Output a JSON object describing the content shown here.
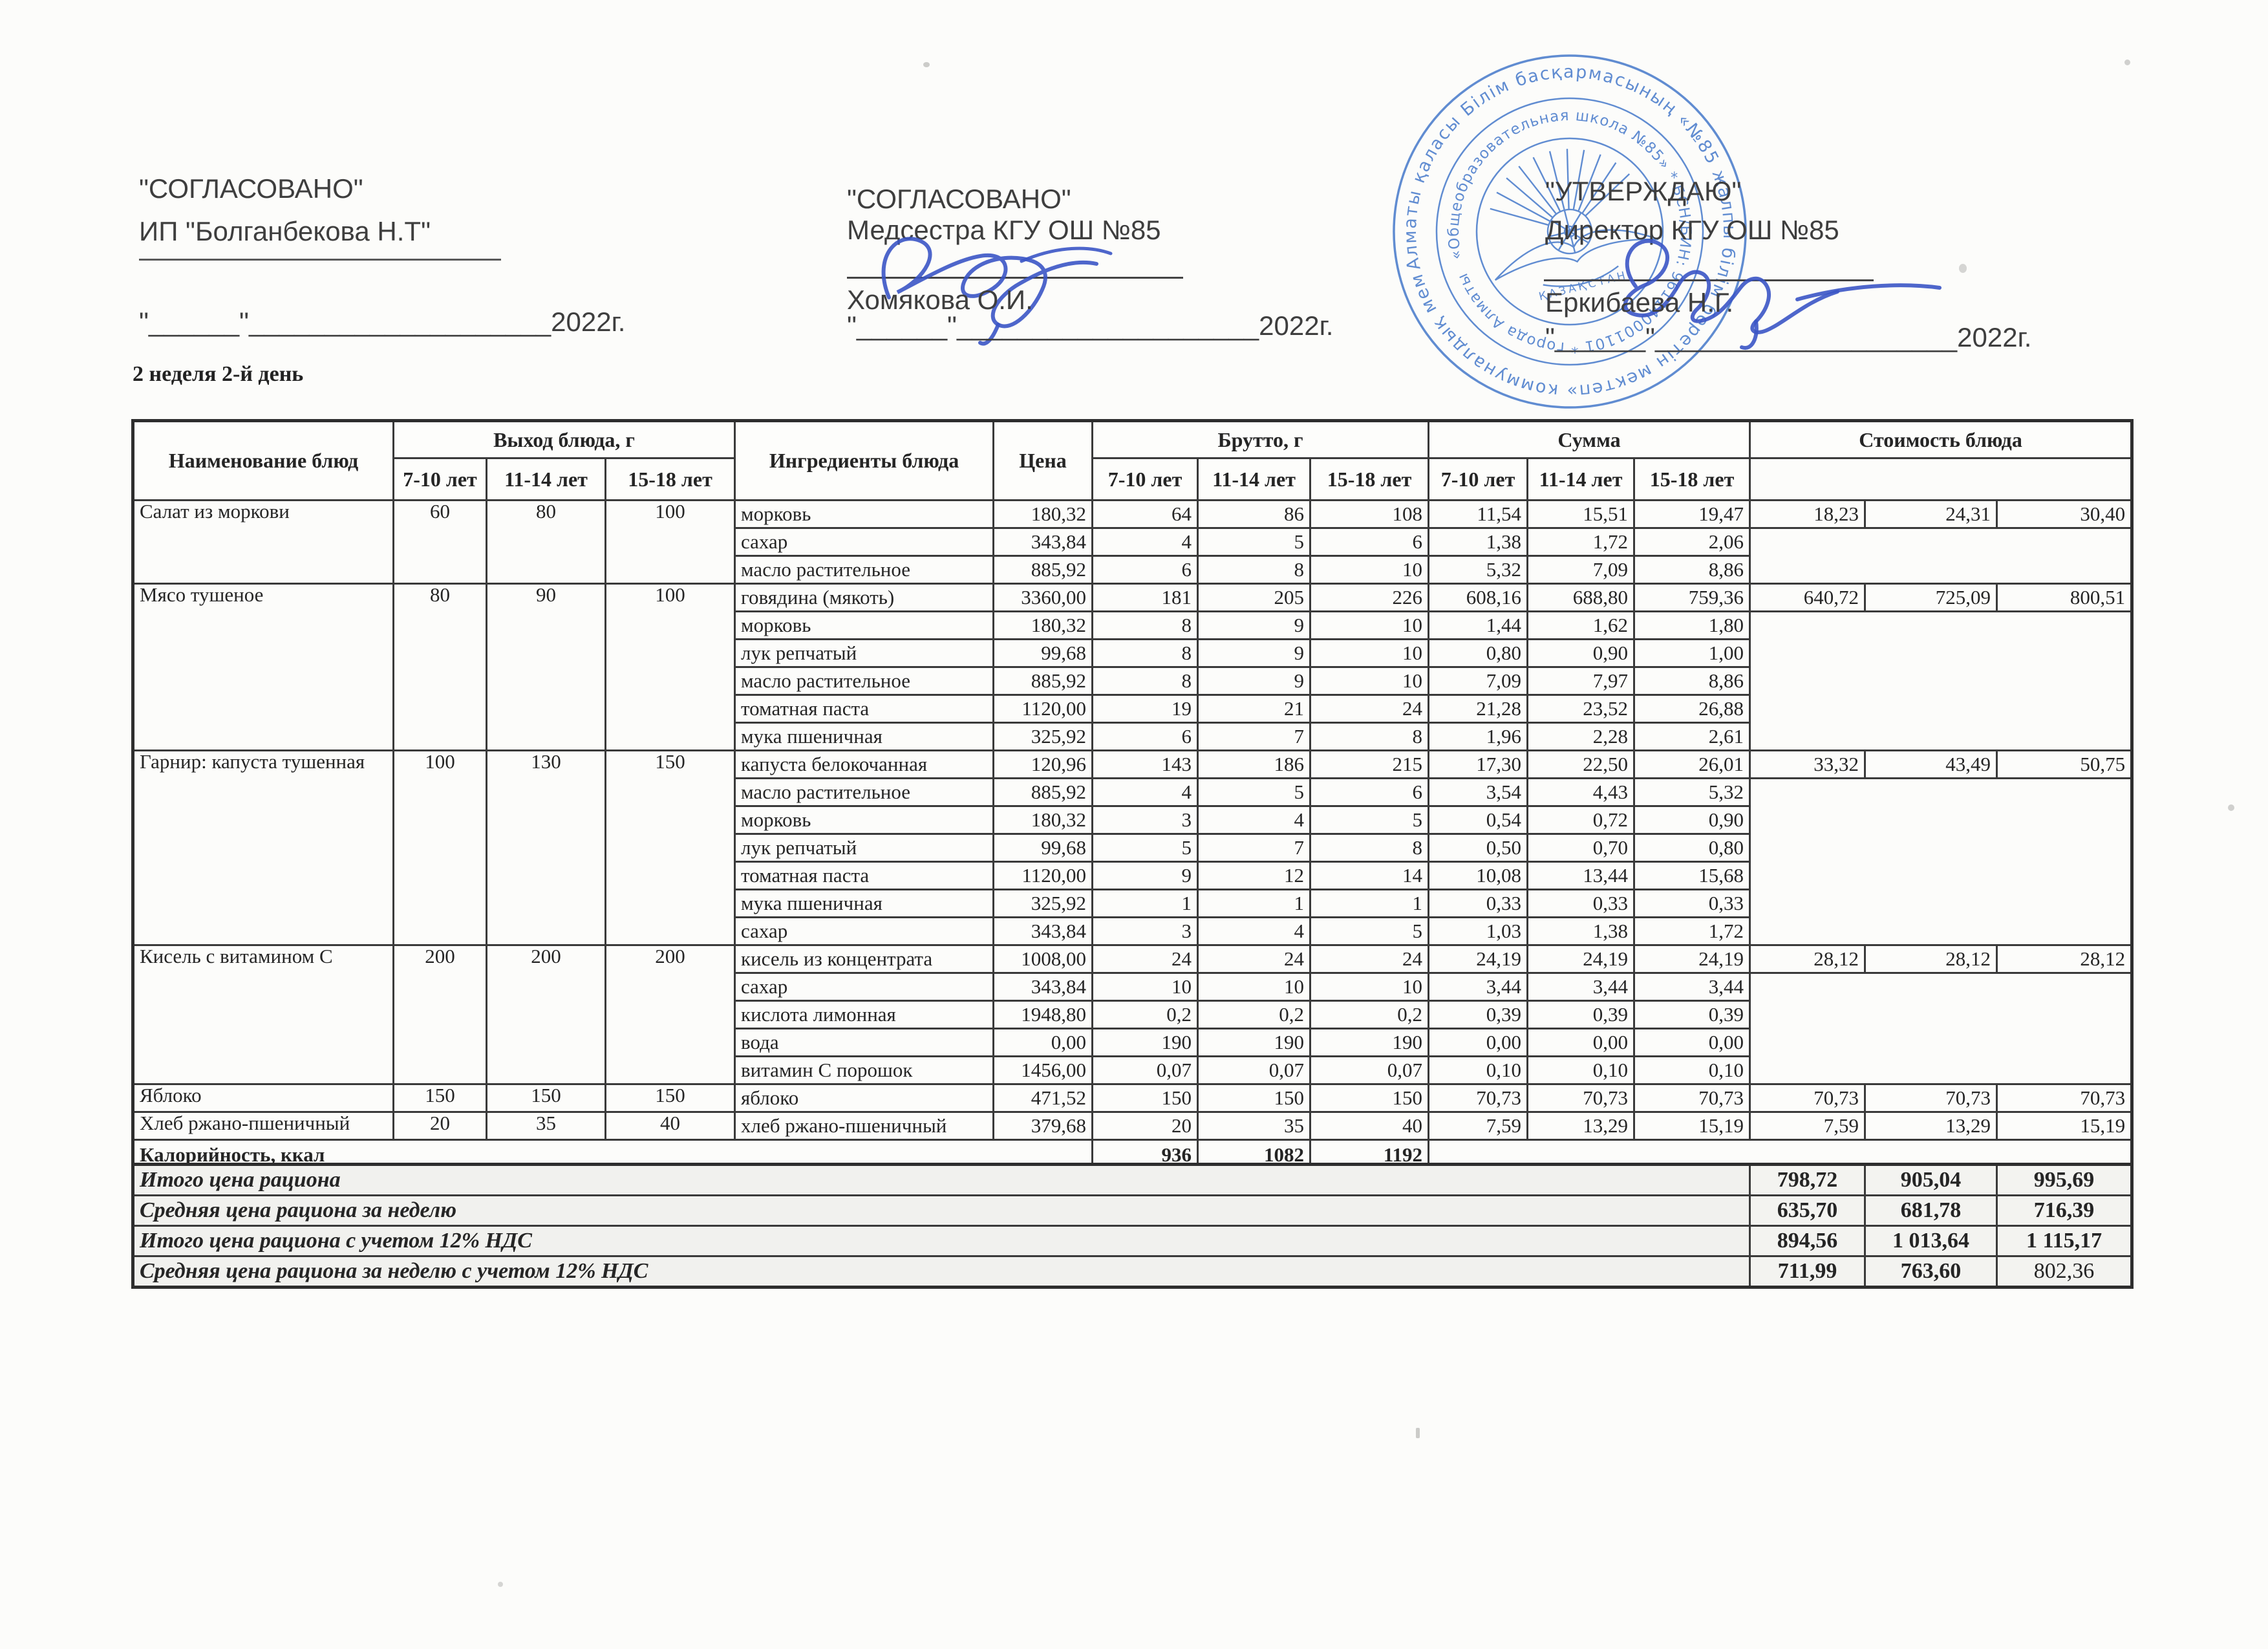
{
  "approvals": [
    {
      "title": "\"СОГЛАСОВАНО\"",
      "subtitle": "ИП \"Болганбекова Н.Т\"",
      "signer": "",
      "date_line": "\"______\"____________________2022г."
    },
    {
      "title": "\"СОГЛАСОВАНО\"",
      "subtitle": "Медсестра КГУ ОШ №85",
      "signer": "Хомякова О.И.",
      "date_line": "\"______\"____________________2022г."
    },
    {
      "title": "\"УТВЕРЖДАЮ\"",
      "subtitle": "Директор КГУ ОШ №85",
      "signer": "Еркибаева Н.Г.",
      "date_line": "\"______\"____________________2022г."
    }
  ],
  "week_label": "2 неделя 2-й день",
  "stamp": {
    "ring_outer": "Алматы қаласы Білім басқармасының «№85 жалпы білім беретін мектеп» коммуналдық мемлекеттік мекемесі *",
    "ring_inner": "«Общеобразовательная школа №85»  *  БСН/БИН: 961140001101  *  города Алматы",
    "center_text": "ҚАЗАҚСТАН",
    "color": "#3f74c9"
  },
  "menu_table": {
    "col_headers": {
      "dish": "Наименование блюд",
      "output": "Выход блюда, г",
      "ingredients": "Ингредиенты блюда",
      "price": "Цена",
      "brutto": "Брутто, г",
      "summa": "Сумма",
      "cost": "Стоимость блюда"
    },
    "age_groups": [
      "7-10 лет",
      "11-14 лет",
      "15-18 лет"
    ],
    "dishes": [
      {
        "name": "Салат из моркови",
        "portions": [
          "60",
          "80",
          "100"
        ],
        "cost": [
          "18,23",
          "24,31",
          "30,40"
        ],
        "ingredients": [
          {
            "name": "морковь",
            "price": "180,32",
            "brutto": [
              "64",
              "86",
              "108"
            ],
            "summa": [
              "11,54",
              "15,51",
              "19,47"
            ]
          },
          {
            "name": "сахар",
            "price": "343,84",
            "brutto": [
              "4",
              "5",
              "6"
            ],
            "summa": [
              "1,38",
              "1,72",
              "2,06"
            ]
          },
          {
            "name": "масло растительное",
            "price": "885,92",
            "brutto": [
              "6",
              "8",
              "10"
            ],
            "summa": [
              "5,32",
              "7,09",
              "8,86"
            ]
          }
        ]
      },
      {
        "name": "Мясо тушеное",
        "portions": [
          "80",
          "90",
          "100"
        ],
        "cost": [
          "640,72",
          "725,09",
          "800,51"
        ],
        "ingredients": [
          {
            "name": "говядина (мякоть)",
            "price": "3360,00",
            "brutto": [
              "181",
              "205",
              "226"
            ],
            "summa": [
              "608,16",
              "688,80",
              "759,36"
            ]
          },
          {
            "name": "морковь",
            "price": "180,32",
            "brutto": [
              "8",
              "9",
              "10"
            ],
            "summa": [
              "1,44",
              "1,62",
              "1,80"
            ]
          },
          {
            "name": "лук репчатый",
            "price": "99,68",
            "brutto": [
              "8",
              "9",
              "10"
            ],
            "summa": [
              "0,80",
              "0,90",
              "1,00"
            ]
          },
          {
            "name": "масло растительное",
            "price": "885,92",
            "brutto": [
              "8",
              "9",
              "10"
            ],
            "summa": [
              "7,09",
              "7,97",
              "8,86"
            ]
          },
          {
            "name": "томатная паста",
            "price": "1120,00",
            "brutto": [
              "19",
              "21",
              "24"
            ],
            "summa": [
              "21,28",
              "23,52",
              "26,88"
            ]
          },
          {
            "name": "мука пшеничная",
            "price": "325,92",
            "brutto": [
              "6",
              "7",
              "8"
            ],
            "summa": [
              "1,96",
              "2,28",
              "2,61"
            ]
          }
        ]
      },
      {
        "name": "Гарнир: капуста тушенная",
        "portions": [
          "100",
          "130",
          "150"
        ],
        "cost": [
          "33,32",
          "43,49",
          "50,75"
        ],
        "ingredients": [
          {
            "name": "капуста белокочанная",
            "price": "120,96",
            "brutto": [
              "143",
              "186",
              "215"
            ],
            "summa": [
              "17,30",
              "22,50",
              "26,01"
            ]
          },
          {
            "name": "масло растительное",
            "price": "885,92",
            "brutto": [
              "4",
              "5",
              "6"
            ],
            "summa": [
              "3,54",
              "4,43",
              "5,32"
            ]
          },
          {
            "name": "морковь",
            "price": "180,32",
            "brutto": [
              "3",
              "4",
              "5"
            ],
            "summa": [
              "0,54",
              "0,72",
              "0,90"
            ]
          },
          {
            "name": "лук репчатый",
            "price": "99,68",
            "brutto": [
              "5",
              "7",
              "8"
            ],
            "summa": [
              "0,50",
              "0,70",
              "0,80"
            ]
          },
          {
            "name": "томатная паста",
            "price": "1120,00",
            "brutto": [
              "9",
              "12",
              "14"
            ],
            "summa": [
              "10,08",
              "13,44",
              "15,68"
            ]
          },
          {
            "name": "мука пшеничная",
            "price": "325,92",
            "brutto": [
              "1",
              "1",
              "1"
            ],
            "summa": [
              "0,33",
              "0,33",
              "0,33"
            ]
          },
          {
            "name": "сахар",
            "price": "343,84",
            "brutto": [
              "3",
              "4",
              "5"
            ],
            "summa": [
              "1,03",
              "1,38",
              "1,72"
            ]
          }
        ]
      },
      {
        "name": "Кисель с витамином С",
        "portions": [
          "200",
          "200",
          "200"
        ],
        "cost": [
          "28,12",
          "28,12",
          "28,12"
        ],
        "ingredients": [
          {
            "name": "кисель из концентрата",
            "price": "1008,00",
            "brutto": [
              "24",
              "24",
              "24"
            ],
            "summa": [
              "24,19",
              "24,19",
              "24,19"
            ]
          },
          {
            "name": "сахар",
            "price": "343,84",
            "brutto": [
              "10",
              "10",
              "10"
            ],
            "summa": [
              "3,44",
              "3,44",
              "3,44"
            ]
          },
          {
            "name": "кислота лимонная",
            "price": "1948,80",
            "brutto": [
              "0,2",
              "0,2",
              "0,2"
            ],
            "summa": [
              "0,39",
              "0,39",
              "0,39"
            ]
          },
          {
            "name": "вода",
            "price": "0,00",
            "brutto": [
              "190",
              "190",
              "190"
            ],
            "summa": [
              "0,00",
              "0,00",
              "0,00"
            ]
          },
          {
            "name": "витамин С порошок",
            "price": "1456,00",
            "brutto": [
              "0,07",
              "0,07",
              "0,07"
            ],
            "summa": [
              "0,10",
              "0,10",
              "0,10"
            ]
          }
        ]
      },
      {
        "name": "Яблоко",
        "portions": [
          "150",
          "150",
          "150"
        ],
        "cost": [
          "70,73",
          "70,73",
          "70,73"
        ],
        "ingredients": [
          {
            "name": "яблоко",
            "price": "471,52",
            "brutto": [
              "150",
              "150",
              "150"
            ],
            "summa": [
              "70,73",
              "70,73",
              "70,73"
            ]
          }
        ]
      },
      {
        "name": "Хлеб ржано-пшеничный",
        "portions": [
          "20",
          "35",
          "40"
        ],
        "cost": [
          "7,59",
          "13,29",
          "15,19"
        ],
        "ingredients": [
          {
            "name": "хлеб ржано-пшеничный",
            "price": "379,68",
            "brutto": [
              "20",
              "35",
              "40"
            ],
            "summa": [
              "7,59",
              "13,29",
              "15,19"
            ]
          }
        ]
      }
    ],
    "kcal_row": {
      "label": "Калорийность, ккал",
      "values": [
        "936",
        "1082",
        "1192"
      ]
    }
  },
  "summary_table": {
    "rows": [
      {
        "label": "Итого цена рациона",
        "values": [
          "798,72",
          "905,04",
          "995,69"
        ]
      },
      {
        "label": "Средняя цена рациона за неделю",
        "values": [
          "635,70",
          "681,78",
          "716,39"
        ]
      },
      {
        "label": "Итого цена рациона с учетом 12% НДС",
        "values": [
          "894,56",
          "1 013,64",
          "1 115,17"
        ]
      },
      {
        "label": "Средняя цена рациона за неделю с учетом 12% НДС",
        "values": [
          "711,99",
          "763,60",
          "802,36"
        ]
      }
    ]
  }
}
